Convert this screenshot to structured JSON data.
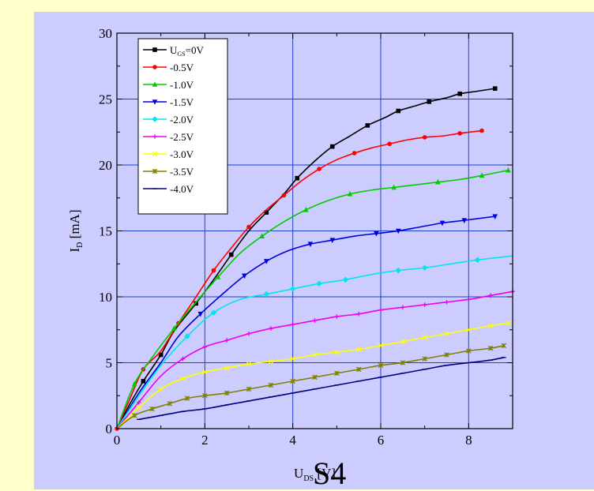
{
  "colors": {
    "page_background": "#ffffcc",
    "panel_background": "#ccccff",
    "grid": "#1f3fcf",
    "axis": "#000000"
  },
  "slide_mark": "S4",
  "chart_data": {
    "type": "line",
    "xlabel": "U",
    "xlabel_sub": "DS",
    "xlabel_unit": " [V]",
    "ylabel": "I",
    "ylabel_sub": "D",
    "ylabel_unit": " [mA]",
    "xlim": [
      0,
      9
    ],
    "ylim": [
      0,
      30
    ],
    "xticks": [
      0,
      2,
      4,
      6,
      8
    ],
    "yticks": [
      0,
      5,
      10,
      15,
      20,
      25,
      30
    ],
    "grid": true,
    "legend_position": "top-left",
    "series": [
      {
        "name": "U",
        "name_sub": "GS",
        "name_suffix": "=0V",
        "color": "#000000",
        "marker": "square",
        "x": [
          0,
          0.3,
          0.6,
          1.0,
          1.3,
          1.8,
          2.2,
          2.6,
          3.0,
          3.4,
          3.8,
          4.1,
          4.5,
          4.9,
          5.3,
          5.7,
          6.1,
          6.4,
          6.8,
          7.1,
          7.5,
          7.8,
          8.2,
          8.6
        ],
        "y": [
          0,
          1.9,
          3.6,
          5.6,
          7.4,
          9.5,
          11.3,
          13.2,
          15.0,
          16.4,
          17.8,
          19.0,
          20.3,
          21.4,
          22.2,
          23.0,
          23.6,
          24.1,
          24.5,
          24.8,
          25.1,
          25.4,
          25.6,
          25.8
        ],
        "marked": [
          0,
          0,
          1,
          1,
          0,
          1,
          0,
          1,
          0,
          1,
          0,
          1,
          0,
          1,
          0,
          1,
          0,
          1,
          0,
          1,
          0,
          1,
          0,
          1
        ]
      },
      {
        "name": "-0.5V",
        "color": "#ff0000",
        "marker": "circle",
        "x": [
          0,
          0.3,
          0.6,
          1.0,
          1.4,
          1.8,
          2.2,
          2.6,
          3.0,
          3.4,
          3.8,
          4.2,
          4.6,
          5.0,
          5.4,
          5.8,
          6.2,
          6.6,
          7.0,
          7.4,
          7.8,
          8.3
        ],
        "y": [
          0,
          2.3,
          4.5,
          5.9,
          8.0,
          10.0,
          12.0,
          13.7,
          15.3,
          16.6,
          17.7,
          18.8,
          19.7,
          20.4,
          20.9,
          21.3,
          21.6,
          21.9,
          22.1,
          22.2,
          22.4,
          22.6
        ],
        "marked": [
          1,
          0,
          1,
          0,
          1,
          0,
          1,
          0,
          1,
          0,
          1,
          0,
          1,
          0,
          1,
          0,
          1,
          0,
          1,
          0,
          1,
          1
        ]
      },
      {
        "name": "-1.0V",
        "color": "#00cc00",
        "marker": "triangle-up",
        "x": [
          0,
          0.4,
          0.8,
          1.3,
          1.8,
          2.3,
          2.8,
          3.3,
          3.8,
          4.3,
          4.8,
          5.3,
          5.8,
          6.3,
          6.8,
          7.3,
          7.8,
          8.3,
          8.9
        ],
        "y": [
          0,
          3.4,
          5.4,
          7.6,
          9.6,
          11.5,
          13.3,
          14.6,
          15.7,
          16.6,
          17.3,
          17.8,
          18.1,
          18.3,
          18.5,
          18.7,
          18.9,
          19.2,
          19.6
        ],
        "marked": [
          0,
          1,
          0,
          1,
          0,
          1,
          0,
          1,
          0,
          1,
          0,
          1,
          0,
          1,
          0,
          1,
          0,
          1,
          1
        ]
      },
      {
        "name": "-1.5V",
        "color": "#0000dd",
        "marker": "triangle-down",
        "x": [
          0,
          0.5,
          1.0,
          1.4,
          1.9,
          2.4,
          2.9,
          3.4,
          3.9,
          4.4,
          4.9,
          5.4,
          5.9,
          6.4,
          6.9,
          7.4,
          7.9,
          8.6
        ],
        "y": [
          0,
          2.7,
          5.0,
          7.0,
          8.7,
          10.2,
          11.6,
          12.7,
          13.5,
          14.0,
          14.3,
          14.6,
          14.8,
          15.0,
          15.3,
          15.6,
          15.8,
          16.1
        ],
        "marked": [
          0,
          0,
          0,
          0,
          1,
          0,
          1,
          1,
          0,
          1,
          1,
          0,
          1,
          1,
          0,
          1,
          1,
          1
        ]
      },
      {
        "name": "-2.0V",
        "color": "#00e5ee",
        "marker": "diamond",
        "x": [
          0,
          0.5,
          1.0,
          1.6,
          2.2,
          2.8,
          3.4,
          4.0,
          4.6,
          5.2,
          5.8,
          6.4,
          7.0,
          7.6,
          8.2,
          9.0
        ],
        "y": [
          0,
          2.5,
          4.8,
          7.0,
          8.8,
          9.8,
          10.2,
          10.6,
          11.0,
          11.3,
          11.7,
          12.0,
          12.2,
          12.5,
          12.8,
          13.1
        ],
        "marked": [
          0,
          0,
          0,
          1,
          1,
          0,
          1,
          1,
          1,
          1,
          0,
          1,
          1,
          0,
          1,
          0
        ]
      },
      {
        "name": "-2.5V",
        "color": "#ee00ee",
        "marker": "plus",
        "x": [
          0,
          0.5,
          1.0,
          1.5,
          2.0,
          2.5,
          3.0,
          3.5,
          4.0,
          4.5,
          5.0,
          5.5,
          6.0,
          6.5,
          7.0,
          7.5,
          8.0,
          8.5,
          9.0
        ],
        "y": [
          0,
          2.0,
          4.0,
          5.3,
          6.2,
          6.7,
          7.2,
          7.6,
          7.9,
          8.2,
          8.5,
          8.7,
          9.0,
          9.2,
          9.4,
          9.6,
          9.8,
          10.1,
          10.4
        ],
        "marked": [
          0,
          1,
          0,
          1,
          1,
          1,
          1,
          1,
          1,
          1,
          1,
          1,
          1,
          1,
          1,
          1,
          1,
          1,
          1
        ]
      },
      {
        "name": "-3.0V",
        "color": "#ffff00",
        "marker": "cross",
        "x": [
          0,
          0.5,
          1.0,
          1.5,
          2.0,
          2.5,
          3.0,
          3.5,
          4.0,
          4.5,
          5.0,
          5.5,
          6.0,
          6.5,
          7.0,
          7.5,
          8.0,
          8.5,
          8.9
        ],
        "y": [
          0,
          1.6,
          3.0,
          3.8,
          4.3,
          4.6,
          4.9,
          5.1,
          5.3,
          5.6,
          5.8,
          6.0,
          6.3,
          6.6,
          6.9,
          7.2,
          7.5,
          7.8,
          8.0
        ],
        "marked": [
          0,
          1,
          1,
          1,
          1,
          1,
          1,
          1,
          1,
          1,
          1,
          1,
          1,
          1,
          1,
          1,
          1,
          1,
          1
        ]
      },
      {
        "name": "-3.5V",
        "color": "#808000",
        "marker": "star",
        "x": [
          0,
          0.4,
          0.8,
          1.2,
          1.6,
          2.0,
          2.5,
          3.0,
          3.5,
          4.0,
          4.5,
          5.0,
          5.5,
          6.0,
          6.5,
          7.0,
          7.5,
          8.0,
          8.5,
          8.8
        ],
        "y": [
          0,
          1.0,
          1.5,
          1.9,
          2.3,
          2.5,
          2.7,
          3.0,
          3.3,
          3.6,
          3.9,
          4.2,
          4.5,
          4.8,
          5.0,
          5.3,
          5.6,
          5.9,
          6.1,
          6.3
        ],
        "marked": [
          0,
          1,
          1,
          1,
          1,
          1,
          1,
          1,
          1,
          1,
          1,
          1,
          1,
          1,
          1,
          1,
          1,
          1,
          1,
          1
        ]
      },
      {
        "name": "-4.0V",
        "color": "#000080",
        "marker": "minus",
        "x": [
          0.5,
          1.0,
          1.5,
          2.0,
          2.5,
          3.0,
          3.5,
          4.0,
          4.5,
          5.0,
          5.5,
          6.0,
          6.5,
          7.0,
          7.5,
          8.0,
          8.5,
          8.8
        ],
        "y": [
          0.7,
          1.0,
          1.3,
          1.5,
          1.8,
          2.1,
          2.4,
          2.7,
          3.0,
          3.3,
          3.6,
          3.9,
          4.2,
          4.5,
          4.8,
          5.0,
          5.2,
          5.4
        ],
        "marked": [
          1,
          1,
          1,
          1,
          1,
          1,
          1,
          1,
          1,
          1,
          1,
          1,
          1,
          1,
          1,
          1,
          1,
          1
        ]
      }
    ]
  }
}
